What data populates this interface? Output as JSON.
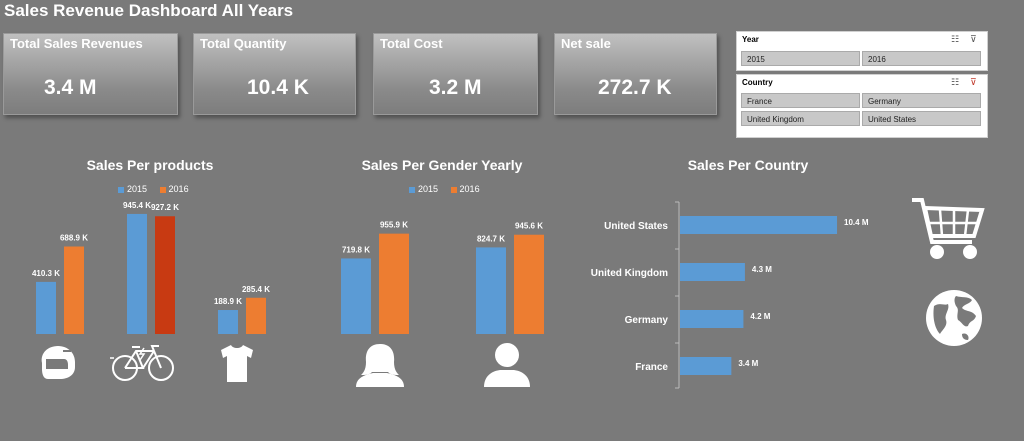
{
  "title": "Sales Revenue Dashboard All Years",
  "kpis": [
    {
      "label": "Total Sales Revenues",
      "value": "3.4 M"
    },
    {
      "label": "Total Quantity",
      "value": "10.4 K"
    },
    {
      "label": "Total Cost",
      "value": "3.2 M"
    },
    {
      "label": "Net sale",
      "value": "272.7 K"
    }
  ],
  "slicers": {
    "year": {
      "header": "Year",
      "items": [
        "2015",
        "2016"
      ]
    },
    "country": {
      "header": "Country",
      "items": [
        "France",
        "Germany",
        "United Kingdom",
        "United States"
      ]
    }
  },
  "colors": {
    "y2015": "#5b9bd5",
    "y2016": "#ed7d31",
    "highlight2016": "#c83a12",
    "bg": "#7a7a7a"
  },
  "products_chart": {
    "title": "Sales Per products",
    "legend": [
      "2015",
      "2016"
    ],
    "icons": [
      "helmet-icon",
      "bicycle-icon",
      "tshirt-icon"
    ]
  },
  "gender_chart": {
    "title": "Sales Per Gender Yearly",
    "legend": [
      "2015",
      "2016"
    ],
    "icons": [
      "female-icon",
      "male-icon"
    ]
  },
  "country_chart": {
    "title": "Sales Per Country"
  },
  "chart_data": [
    {
      "type": "bar",
      "title": "Sales Per products",
      "categories": [
        "",
        "",
        ""
      ],
      "series": [
        {
          "name": "2015",
          "values": [
            410.3,
            945.4,
            188.9
          ],
          "labels": [
            "410.3 K",
            "945.4 K",
            "188.9 K"
          ]
        },
        {
          "name": "2016",
          "values": [
            688.9,
            927.2,
            285.4
          ],
          "labels": [
            "688.9 K",
            "927.2 K",
            "285.4 K"
          ]
        }
      ],
      "ylim": [
        0,
        1000
      ],
      "legend": "top"
    },
    {
      "type": "bar",
      "title": "Sales Per Gender Yearly",
      "categories": [
        "",
        ""
      ],
      "series": [
        {
          "name": "2015",
          "values": [
            719.8,
            824.7
          ],
          "labels": [
            "719.8 K",
            "824.7 K"
          ]
        },
        {
          "name": "2016",
          "values": [
            955.9,
            945.6
          ],
          "labels": [
            "955.9 K",
            "945.6 K"
          ]
        }
      ],
      "ylim": [
        0,
        1000
      ],
      "legend": "top"
    },
    {
      "type": "bar",
      "orientation": "horizontal",
      "title": "Sales Per Country",
      "categories": [
        "United States",
        "United Kingdom",
        "Germany",
        "France"
      ],
      "values": [
        10.4,
        4.3,
        4.2,
        3.4
      ],
      "labels": [
        "10.4 M",
        "4.3 M",
        "4.2 M",
        "3.4 M"
      ],
      "xlim": [
        0,
        12
      ]
    }
  ],
  "decor_icons": [
    "shopping-cart-icon",
    "globe-icon"
  ]
}
